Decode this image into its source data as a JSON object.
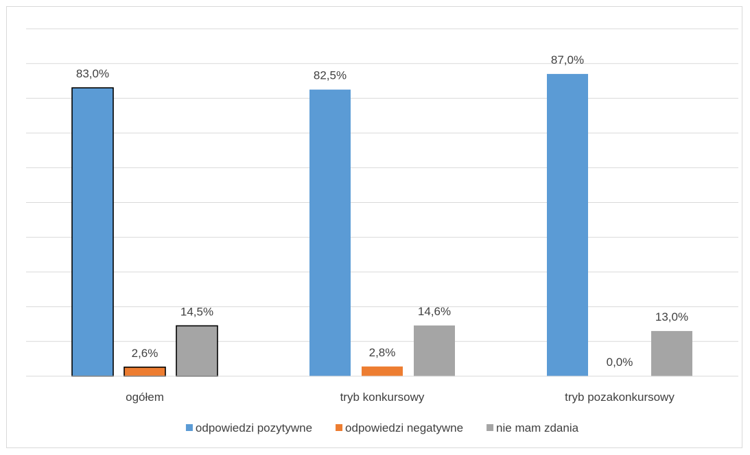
{
  "chart_data": {
    "type": "bar",
    "categories": [
      "ogółem",
      "tryb konkursowy",
      "tryb pozakonkursowy"
    ],
    "series": [
      {
        "name": "odpowiedzi pozytywne",
        "color": "#5b9bd5",
        "values": [
          83.0,
          82.5,
          87.0
        ],
        "labels": [
          "83,0%",
          "82,5%",
          "87,0%"
        ]
      },
      {
        "name": "odpowiedzi negatywne",
        "color": "#ed7d31",
        "values": [
          2.6,
          2.8,
          0.0
        ],
        "labels": [
          "2,6%",
          "2,8%",
          "0,0%"
        ]
      },
      {
        "name": "nie mam zdania",
        "color": "#a5a5a5",
        "values": [
          14.5,
          14.6,
          13.0
        ],
        "labels": [
          "14,5%",
          "14,6%",
          "13,0%"
        ]
      }
    ],
    "ylim": [
      0,
      100
    ],
    "grid": true,
    "legend_position": "bottom",
    "highlighted_category": "ogółem"
  }
}
